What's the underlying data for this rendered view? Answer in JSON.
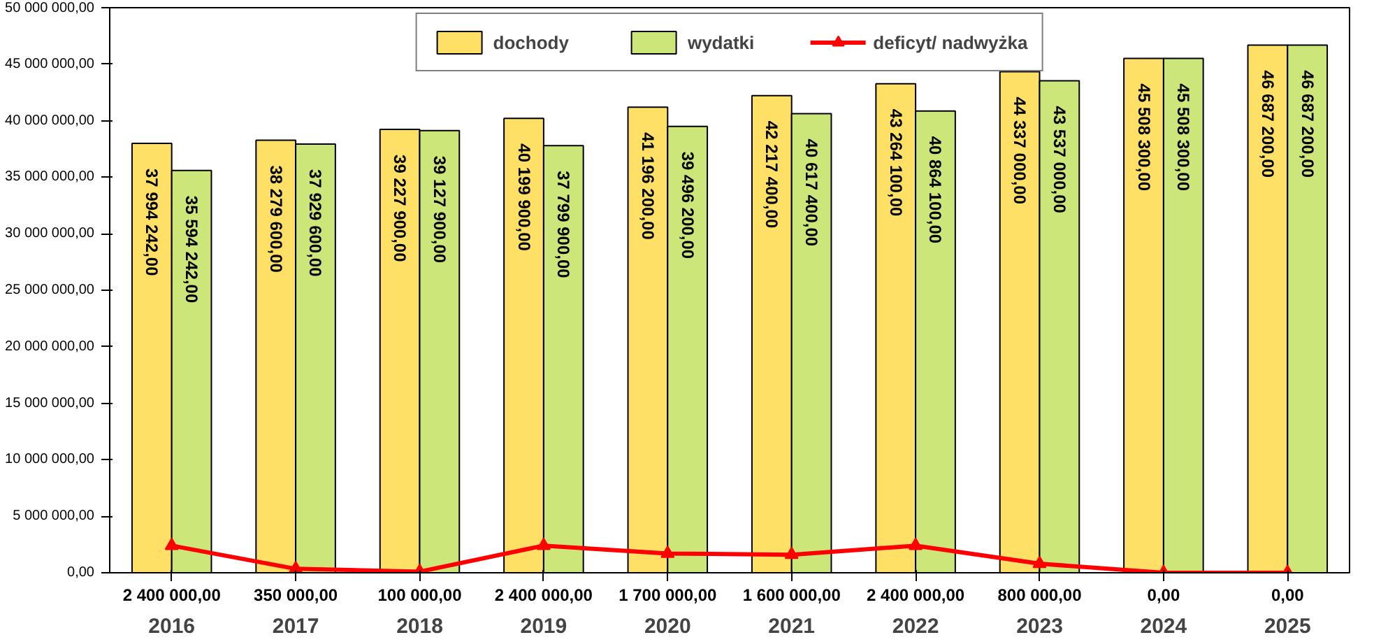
{
  "chart_data": {
    "type": "bar",
    "categories": [
      "2016",
      "2017",
      "2018",
      "2019",
      "2020",
      "2021",
      "2022",
      "2023",
      "2024",
      "2025"
    ],
    "series": [
      {
        "name": "dochody",
        "color": "#ffe066",
        "values": [
          37994242,
          38279600,
          39227900,
          40199900,
          41196200,
          42217400,
          43264100,
          44337000,
          45508300,
          46687200
        ],
        "value_labels": [
          "37 994 242,00",
          "38 279 600,00",
          "39 227 900,00",
          "40 199 900,00",
          "41 196 200,00",
          "42 217 400,00",
          "43 264 100,00",
          "44 337 000,00",
          "45 508 300,00",
          "46 687 200,00"
        ]
      },
      {
        "name": "wydatki",
        "color": "#cce67a",
        "values": [
          35594242,
          37929600,
          39127900,
          37799900,
          39496200,
          40617400,
          40864100,
          43537000,
          45508300,
          46687200
        ],
        "value_labels": [
          "35 594 242,00",
          "37 929 600,00",
          "39 127 900,00",
          "37 799 900,00",
          "39 496 200,00",
          "40 617 400,00",
          "40 864 100,00",
          "43 537 000,00",
          "45 508 300,00",
          "46 687 200,00"
        ]
      },
      {
        "name": "deficyt/ nadwyżka",
        "type": "line",
        "color": "#ff0000",
        "marker": "triangle",
        "values": [
          2400000,
          350000,
          100000,
          2400000,
          1700000,
          1600000,
          2400000,
          800000,
          0,
          0
        ],
        "value_labels": [
          "2 400 000,00",
          "350 000,00",
          "100 000,00",
          "2 400 000,00",
          "1 700 000,00",
          "1 600 000,00",
          "2 400 000,00",
          "800 000,00",
          "0,00",
          "0,00"
        ]
      }
    ],
    "ylim": [
      0,
      50000000
    ],
    "yticks": [
      {
        "value": 0,
        "label": "0,00"
      },
      {
        "value": 5000000,
        "label": "5 000 000,00"
      },
      {
        "value": 10000000,
        "label": "10 000 000,00"
      },
      {
        "value": 15000000,
        "label": "15 000 000,00"
      },
      {
        "value": 20000000,
        "label": "20 000 000,00"
      },
      {
        "value": 25000000,
        "label": "25 000 000,00"
      },
      {
        "value": 30000000,
        "label": "30 000 000,00"
      },
      {
        "value": 35000000,
        "label": "35 000 000,00"
      },
      {
        "value": 40000000,
        "label": "40 000 000,00"
      },
      {
        "value": 45000000,
        "label": "45 000 000,00"
      },
      {
        "value": 50000000,
        "label": "50 000 000,00"
      }
    ],
    "grid": false,
    "legend": "top"
  }
}
